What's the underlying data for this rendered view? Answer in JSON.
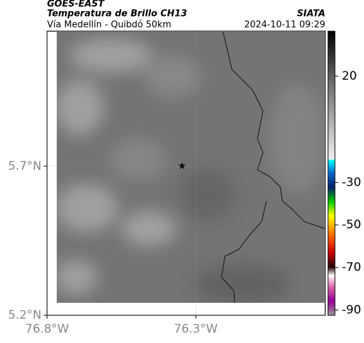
{
  "header": {
    "source": "GOES-EAST",
    "product": "Temperatura de Brillo CH13",
    "route": "Vía Medellín - Quibdó 50km",
    "agency": "SIATA",
    "timestamp": "2024-10-11 09:29"
  },
  "map": {
    "xlim": [
      -76.8,
      -75.865
    ],
    "ylim": [
      5.2,
      6.153
    ],
    "xticks": [
      {
        "value": -76.8,
        "label": "76.8°W"
      },
      {
        "value": -76.3,
        "label": "76.3°W"
      }
    ],
    "yticks": [
      {
        "value": 5.7,
        "label": "5.7°N"
      },
      {
        "value": 5.2,
        "label": "5.2°N"
      }
    ]
  },
  "colorbar": {
    "lim": [
      41.2,
      -92.5
    ],
    "ticks": [
      20,
      -30,
      -50,
      -70,
      -90
    ]
  }
}
